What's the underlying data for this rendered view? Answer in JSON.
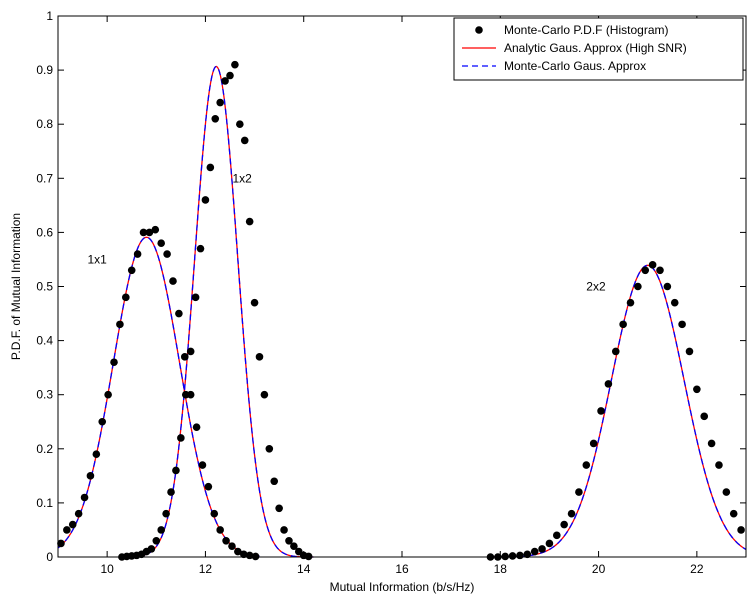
{
  "chart_data": {
    "type": "line",
    "title": "",
    "xlabel": "Mutual Information (b/s/Hz)",
    "ylabel": "P.D.F. of Mutual Information",
    "xlim": [
      9,
      23
    ],
    "ylim": [
      0,
      1
    ],
    "xticks": [
      "10",
      "12",
      "14",
      "16",
      "18",
      "20",
      "22"
    ],
    "yticks": [
      "0",
      "0.1",
      "0.2",
      "0.3",
      "0.4",
      "0.5",
      "0.6",
      "0.7",
      "0.8",
      "0.9",
      "1"
    ],
    "grid": false,
    "legend_position": "top-right",
    "annotations": [
      {
        "text": "1x1",
        "x": 9.6,
        "y": 0.55
      },
      {
        "text": "1x2",
        "x": 12.55,
        "y": 0.7
      },
      {
        "text": "2x2",
        "x": 19.75,
        "y": 0.5
      }
    ],
    "series": [
      {
        "name": "Monte-Carlo P.D.F (Histogram)",
        "style": "dots",
        "color": "#000000",
        "groups": [
          {
            "label": "1x1",
            "points": [
              [
                9.06,
                0.025
              ],
              [
                9.18,
                0.05
              ],
              [
                9.3,
                0.06
              ],
              [
                9.42,
                0.08
              ],
              [
                9.54,
                0.11
              ],
              [
                9.66,
                0.15
              ],
              [
                9.78,
                0.19
              ],
              [
                9.9,
                0.25
              ],
              [
                10.02,
                0.3
              ],
              [
                10.14,
                0.36
              ],
              [
                10.26,
                0.43
              ],
              [
                10.38,
                0.48
              ],
              [
                10.5,
                0.53
              ],
              [
                10.62,
                0.56
              ],
              [
                10.74,
                0.6
              ],
              [
                10.86,
                0.6
              ],
              [
                10.98,
                0.605
              ],
              [
                11.1,
                0.58
              ],
              [
                11.22,
                0.56
              ],
              [
                11.34,
                0.51
              ],
              [
                11.46,
                0.45
              ],
              [
                11.58,
                0.37
              ],
              [
                11.7,
                0.3
              ],
              [
                11.82,
                0.24
              ],
              [
                11.94,
                0.17
              ],
              [
                12.06,
                0.13
              ],
              [
                12.18,
                0.08
              ],
              [
                12.3,
                0.05
              ],
              [
                12.42,
                0.03
              ],
              [
                12.54,
                0.02
              ],
              [
                12.66,
                0.01
              ],
              [
                12.78,
                0.005
              ],
              [
                12.9,
                0.003
              ],
              [
                13.02,
                0.001
              ]
            ]
          },
          {
            "label": "1x2",
            "points": [
              [
                10.3,
                0.0
              ],
              [
                10.4,
                0.001
              ],
              [
                10.5,
                0.002
              ],
              [
                10.6,
                0.003
              ],
              [
                10.7,
                0.005
              ],
              [
                10.8,
                0.01
              ],
              [
                10.9,
                0.015
              ],
              [
                11.0,
                0.03
              ],
              [
                11.1,
                0.05
              ],
              [
                11.2,
                0.08
              ],
              [
                11.3,
                0.12
              ],
              [
                11.4,
                0.16
              ],
              [
                11.5,
                0.22
              ],
              [
                11.6,
                0.3
              ],
              [
                11.7,
                0.38
              ],
              [
                11.8,
                0.48
              ],
              [
                11.9,
                0.57
              ],
              [
                12.0,
                0.66
              ],
              [
                12.1,
                0.72
              ],
              [
                12.2,
                0.81
              ],
              [
                12.3,
                0.84
              ],
              [
                12.4,
                0.88
              ],
              [
                12.5,
                0.89
              ],
              [
                12.6,
                0.91
              ],
              [
                12.7,
                0.8
              ],
              [
                12.8,
                0.77
              ],
              [
                12.9,
                0.62
              ],
              [
                13.0,
                0.47
              ],
              [
                13.1,
                0.37
              ],
              [
                13.2,
                0.3
              ],
              [
                13.3,
                0.2
              ],
              [
                13.4,
                0.14
              ],
              [
                13.5,
                0.09
              ],
              [
                13.6,
                0.05
              ],
              [
                13.7,
                0.03
              ],
              [
                13.8,
                0.02
              ],
              [
                13.9,
                0.01
              ],
              [
                14.0,
                0.003
              ],
              [
                14.1,
                0.001
              ]
            ]
          },
          {
            "label": "2x2",
            "points": [
              [
                17.8,
                0.0
              ],
              [
                17.95,
                0.0
              ],
              [
                18.1,
                0.001
              ],
              [
                18.25,
                0.002
              ],
              [
                18.4,
                0.003
              ],
              [
                18.55,
                0.005
              ],
              [
                18.7,
                0.01
              ],
              [
                18.85,
                0.015
              ],
              [
                19.0,
                0.025
              ],
              [
                19.15,
                0.04
              ],
              [
                19.3,
                0.06
              ],
              [
                19.45,
                0.08
              ],
              [
                19.6,
                0.12
              ],
              [
                19.75,
                0.17
              ],
              [
                19.9,
                0.21
              ],
              [
                20.05,
                0.27
              ],
              [
                20.2,
                0.32
              ],
              [
                20.35,
                0.38
              ],
              [
                20.5,
                0.43
              ],
              [
                20.65,
                0.47
              ],
              [
                20.8,
                0.5
              ],
              [
                20.95,
                0.53
              ],
              [
                21.1,
                0.54
              ],
              [
                21.25,
                0.53
              ],
              [
                21.4,
                0.5
              ],
              [
                21.55,
                0.47
              ],
              [
                21.7,
                0.43
              ],
              [
                21.85,
                0.38
              ],
              [
                22.0,
                0.31
              ],
              [
                22.15,
                0.26
              ],
              [
                22.3,
                0.21
              ],
              [
                22.45,
                0.17
              ],
              [
                22.6,
                0.12
              ],
              [
                22.75,
                0.08
              ],
              [
                22.9,
                0.05
              ],
              [
                23.05,
                0.01
              ]
            ]
          }
        ]
      },
      {
        "name": "Analytic Gaus. Approx (High SNR)",
        "style": "solid",
        "color": "#ff0000",
        "curves": [
          {
            "label": "1x1",
            "mean": 10.8,
            "std": 0.675,
            "xmin": 9.0,
            "xmax": 13.1
          },
          {
            "label": "1x2",
            "mean": 12.22,
            "std": 0.44,
            "xmin": 10.25,
            "xmax": 14.2
          },
          {
            "label": "2x2",
            "mean": 21.0,
            "std": 0.74,
            "xmin": 17.8,
            "xmax": 23.0
          }
        ]
      },
      {
        "name": "Monte-Carlo Gaus. Approx",
        "style": "dashed",
        "color": "#0000ff",
        "curves": [
          {
            "label": "1x1",
            "mean": 10.8,
            "std": 0.675,
            "xmin": 9.0,
            "xmax": 13.1
          },
          {
            "label": "1x2",
            "mean": 12.22,
            "std": 0.44,
            "xmin": 10.25,
            "xmax": 14.2
          },
          {
            "label": "2x2",
            "mean": 21.0,
            "std": 0.74,
            "xmin": 17.8,
            "xmax": 23.0
          }
        ]
      }
    ]
  }
}
